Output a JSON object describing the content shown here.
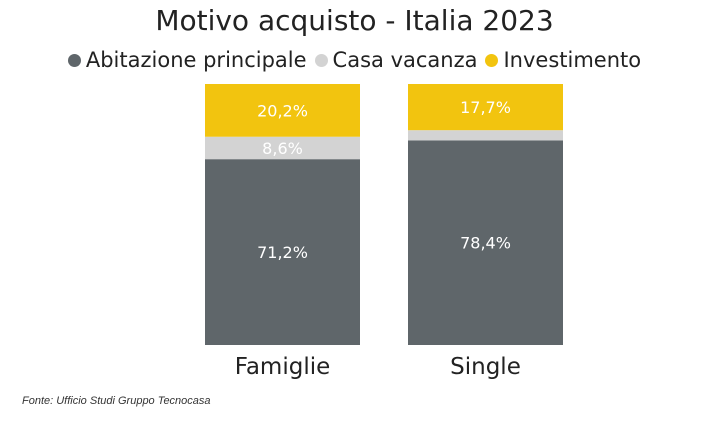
{
  "chart_data": {
    "type": "bar",
    "stacked": true,
    "normalized": true,
    "title": "Motivo acquisto - Italia 2023",
    "categories": [
      "Famiglie",
      "Single"
    ],
    "series": [
      {
        "name": "Abitazione principale",
        "color": "#5f666a",
        "values": [
          71.2,
          78.4
        ],
        "labels": [
          "71,2%",
          "78,4%"
        ]
      },
      {
        "name": "Casa vacanza",
        "color": "#d3d3d3",
        "values": [
          8.6,
          3.9
        ],
        "labels": [
          "8,6%",
          ""
        ]
      },
      {
        "name": "Investimento",
        "color": "#f2c40f",
        "values": [
          20.2,
          17.7
        ],
        "labels": [
          "20,2%",
          "17,7%"
        ]
      }
    ],
    "ylim": [
      0,
      100
    ],
    "grid": false,
    "legend_position": "top"
  },
  "source": "Fonte: Ufficio Studi Gruppo Tecnocasa"
}
